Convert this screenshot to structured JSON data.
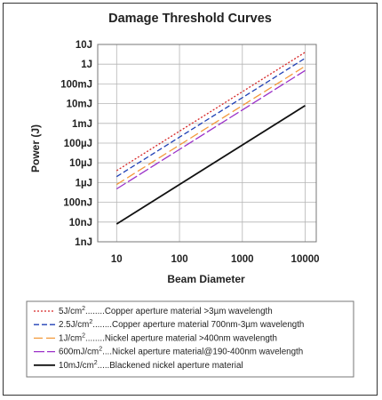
{
  "chart_data": {
    "type": "line",
    "title": "Damage Threshold Curves",
    "xlabel": "Beam Diameter",
    "ylabel": "Power (J)",
    "x_scale": "log",
    "y_scale": "log",
    "xlim": [
      5,
      15000
    ],
    "ylim": [
      1e-09,
      10
    ],
    "x_ticks": [
      10,
      100,
      1000,
      10000
    ],
    "x_tick_labels": [
      "10",
      "100",
      "1000",
      "10000"
    ],
    "y_ticks": [
      1e-09,
      1e-08,
      1e-07,
      1e-06,
      1e-05,
      0.0001,
      0.001,
      0.01,
      0.1,
      1,
      10
    ],
    "y_tick_labels": [
      "1nJ",
      "10nJ",
      "100nJ",
      "1µJ",
      "10µJ",
      "100µJ",
      "1mJ",
      "10mJ",
      "100mJ",
      "1J",
      "10J"
    ],
    "grid": true,
    "legend_position": "below",
    "series": [
      {
        "name": "5J/cm²........Copper aperture material >3µm wavelength",
        "label_main": "5J/cm",
        "label_sup": "2",
        "label_rest": "........Copper aperture material >3µm wavelength",
        "color": "#d62728",
        "dash": "2,2",
        "x": [
          10,
          10000
        ],
        "y": [
          4e-06,
          4
        ]
      },
      {
        "name": "2.5J/cm²........Copper aperture material 700nm-3µm wavelength",
        "label_main": "2.5J/cm",
        "label_sup": "2",
        "label_rest": "........Copper aperture material 700nm-3µm wavelength",
        "color": "#1f3fb5",
        "dash": "6,3",
        "x": [
          10,
          10000
        ],
        "y": [
          2e-06,
          2
        ]
      },
      {
        "name": "1J/cm²........Nickel aperture material >400nm wavelength",
        "label_main": "1J/cm",
        "label_sup": "2",
        "label_rest": "........Nickel aperture material >400nm wavelength",
        "color": "#f39a3c",
        "dash": "10,4",
        "x": [
          10,
          10000
        ],
        "y": [
          8e-07,
          0.8
        ]
      },
      {
        "name": "600mJ/cm²....Nickel aperture material@190-400nm wavelength",
        "label_main": "600mJ/cm",
        "label_sup": "2",
        "label_rest": "....Nickel aperture material@190-400nm wavelength",
        "color": "#9b30c8",
        "dash": "12,3",
        "x": [
          10,
          10000
        ],
        "y": [
          4.8e-07,
          0.48
        ]
      },
      {
        "name": "10mJ/cm².....Blackened nickel aperture material",
        "label_main": "10mJ/cm",
        "label_sup": "2",
        "label_rest": ".....Blackened nickel aperture material",
        "color": "#111111",
        "dash": "",
        "x": [
          10,
          10000
        ],
        "y": [
          8e-09,
          0.008
        ]
      }
    ]
  }
}
